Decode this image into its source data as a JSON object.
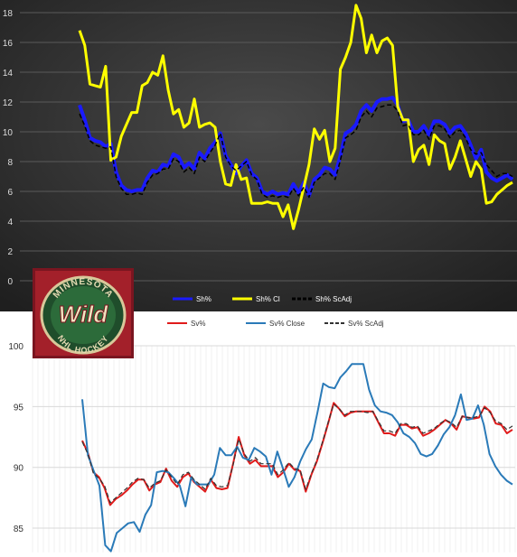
{
  "chart_data": [
    {
      "type": "line",
      "background": "#353535",
      "ylim": [
        0,
        18
      ],
      "yticks": [
        "0",
        "2",
        "4",
        "6",
        "8",
        "10",
        "12",
        "14",
        "16",
        "18"
      ],
      "legend_position": "bottom",
      "grid": true,
      "series": [
        {
          "name": "Sh%",
          "color": "#1a1aff",
          "style": "solid",
          "values": [
            11.8,
            10.8,
            9.6,
            9.4,
            9.3,
            9.0,
            9.2,
            7.3,
            6.4,
            6.1,
            6.0,
            6.1,
            6.1,
            6.9,
            7.4,
            7.3,
            7.8,
            7.7,
            8.5,
            8.3,
            7.6,
            7.9,
            7.5,
            8.6,
            8.2,
            8.9,
            9.3,
            9.9,
            8.4,
            7.8,
            7.2,
            7.7,
            8.1,
            7.2,
            6.9,
            6.0,
            5.8,
            6.0,
            5.8,
            5.9,
            5.8,
            6.5,
            5.9,
            6.6,
            5.7,
            6.8,
            7.1,
            7.6,
            7.5,
            7.1,
            8.4,
            9.9,
            10.1,
            10.5,
            11.4,
            11.8,
            11.4,
            12.0,
            12.2,
            12.2,
            12.3,
            11.8,
            10.7,
            10.8,
            10.0,
            10.0,
            10.4,
            9.8,
            10.7,
            10.7,
            10.5,
            9.9,
            10.3,
            10.4,
            9.9,
            9.1,
            8.2,
            8.8,
            7.3,
            6.9,
            6.7,
            6.9,
            7.1,
            6.8
          ]
        },
        {
          "name": "Sh% Cl",
          "color": "#ffff00",
          "style": "solid",
          "values": [
            16.8,
            15.8,
            13.2,
            13.1,
            13.0,
            14.4,
            8.1,
            8.3,
            9.7,
            10.5,
            11.3,
            11.3,
            13.1,
            13.3,
            14.0,
            13.8,
            15.1,
            12.8,
            11.2,
            11.5,
            10.3,
            10.6,
            12.2,
            10.3,
            10.5,
            10.6,
            10.3,
            8.0,
            6.5,
            6.4,
            7.8,
            6.8,
            6.9,
            5.2,
            5.2,
            5.2,
            5.3,
            5.2,
            5.2,
            4.3,
            5.1,
            3.5,
            4.8,
            6.3,
            7.8,
            10.2,
            9.5,
            10.1,
            8.0,
            8.9,
            14.2,
            15.0,
            16.0,
            18.5,
            17.6,
            15.3,
            16.5,
            15.3,
            16.1,
            16.3,
            15.8,
            11.7,
            10.8,
            10.8,
            8.0,
            8.8,
            9.1,
            7.8,
            9.8,
            9.4,
            9.2,
            7.5,
            8.3,
            9.4,
            8.2,
            7.0,
            8.0,
            7.5,
            5.2,
            5.3,
            5.8,
            6.1,
            6.4,
            6.6
          ]
        },
        {
          "name": "Sh% ScAdj",
          "color": "#000000",
          "style": "dashed",
          "values": [
            11.2,
            10.4,
            9.4,
            9.1,
            9.0,
            8.9,
            9.0,
            7.0,
            6.2,
            5.8,
            5.8,
            5.9,
            5.8,
            6.6,
            7.1,
            7.2,
            7.5,
            7.5,
            8.2,
            8.0,
            7.3,
            7.6,
            7.2,
            8.3,
            8.0,
            8.6,
            9.1,
            9.9,
            8.3,
            7.7,
            7.4,
            7.7,
            8.0,
            7.1,
            6.8,
            5.8,
            5.6,
            5.7,
            5.6,
            5.7,
            5.6,
            6.2,
            5.7,
            6.3,
            5.6,
            6.6,
            6.9,
            7.2,
            7.2,
            6.8,
            8.1,
            9.6,
            9.8,
            10.1,
            11.0,
            11.4,
            11.0,
            11.6,
            11.7,
            11.8,
            11.8,
            11.4,
            10.4,
            10.5,
            9.8,
            9.8,
            10.1,
            9.5,
            10.4,
            10.4,
            10.2,
            9.6,
            10.0,
            10.1,
            9.6,
            8.8,
            8.5,
            8.6,
            7.8,
            7.4,
            7.0,
            7.2,
            7.2,
            7.0
          ]
        }
      ]
    },
    {
      "type": "line",
      "background": "#ffffff",
      "ylim": [
        83,
        100
      ],
      "yticks": [
        "85",
        "90",
        "95",
        "100"
      ],
      "legend_position": "top",
      "grid": true,
      "series": [
        {
          "name": "Sv%",
          "color": "#e01b1b",
          "style": "solid",
          "values": [
            92.2,
            91.2,
            89.6,
            89.2,
            88.3,
            86.9,
            87.4,
            87.7,
            88.1,
            88.6,
            89.0,
            89.0,
            88.1,
            88.6,
            88.8,
            89.9,
            88.9,
            88.4,
            89.2,
            89.5,
            88.8,
            88.4,
            88.0,
            89.0,
            88.3,
            88.2,
            88.3,
            90.3,
            92.5,
            91.0,
            90.3,
            90.6,
            90.1,
            90.1,
            90.1,
            89.2,
            89.6,
            90.3,
            89.8,
            89.7,
            88.0,
            89.4,
            90.5,
            92.0,
            93.6,
            95.3,
            94.8,
            94.2,
            94.5,
            94.6,
            94.6,
            94.6,
            94.6,
            93.7,
            92.8,
            92.8,
            92.6,
            93.5,
            93.5,
            93.2,
            93.3,
            92.6,
            92.8,
            93.1,
            93.5,
            93.9,
            93.6,
            93.1,
            94.2,
            94.1,
            94.0,
            94.1,
            95.0,
            94.6,
            93.6,
            93.5,
            92.8,
            93.1
          ]
        },
        {
          "name": "Sv% Close",
          "color": "#2a7ab8",
          "style": "solid",
          "values": [
            95.6,
            91.0,
            89.7,
            88.5,
            83.6,
            83.1,
            84.6,
            85.0,
            85.4,
            85.5,
            84.7,
            86.1,
            86.9,
            89.6,
            89.7,
            89.6,
            89.1,
            88.5,
            86.8,
            89.2,
            88.6,
            88.6,
            88.6,
            89.4,
            91.6,
            91.0,
            91.0,
            91.7,
            90.8,
            90.6,
            91.6,
            91.3,
            90.9,
            89.4,
            91.3,
            89.9,
            88.4,
            89.2,
            90.5,
            91.5,
            92.3,
            94.5,
            96.9,
            96.6,
            96.5,
            97.4,
            97.9,
            98.5,
            98.5,
            98.5,
            96.4,
            95.1,
            94.6,
            94.5,
            94.3,
            93.7,
            92.8,
            92.5,
            92.0,
            91.1,
            90.9,
            91.1,
            91.8,
            92.7,
            93.3,
            94.3,
            96.0,
            93.9,
            94.0,
            95.1,
            93.5,
            91.1,
            90.1,
            89.4,
            88.9,
            88.6
          ]
        },
        {
          "name": "Sv% ScAdj",
          "color": "#333333",
          "style": "dashed",
          "values": [
            92.1,
            91.1,
            89.5,
            89.1,
            88.5,
            87.1,
            87.5,
            87.9,
            88.3,
            88.8,
            89.1,
            89.0,
            88.3,
            88.7,
            88.9,
            89.8,
            89.2,
            88.6,
            89.4,
            89.6,
            89.0,
            88.6,
            88.2,
            89.1,
            88.5,
            88.4,
            88.5,
            90.2,
            92.3,
            91.1,
            90.5,
            90.8,
            90.3,
            90.3,
            90.3,
            89.4,
            89.8,
            90.4,
            89.9,
            89.8,
            88.2,
            89.5,
            90.6,
            92.1,
            93.7,
            95.2,
            94.8,
            94.3,
            94.6,
            94.6,
            94.6,
            94.5,
            94.6,
            93.8,
            93.0,
            93.0,
            92.8,
            93.6,
            93.6,
            93.3,
            93.4,
            92.8,
            93.0,
            93.2,
            93.6,
            93.9,
            93.7,
            93.3,
            94.2,
            94.1,
            94.1,
            94.2,
            94.9,
            94.5,
            93.8,
            93.6,
            93.1,
            93.4
          ]
        }
      ]
    }
  ],
  "logo": {
    "top_arc": "MINNESOTA",
    "main": "Wild",
    "bottom_arc": "NHL HOCKEY"
  }
}
